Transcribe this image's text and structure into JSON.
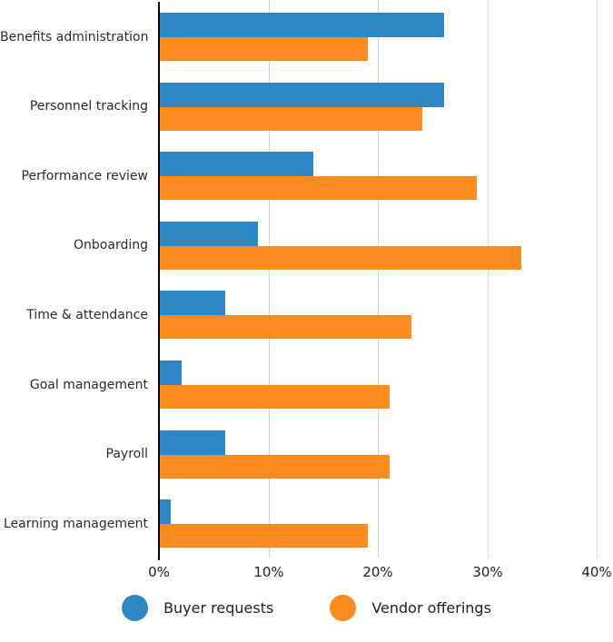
{
  "chart_data": {
    "type": "bar",
    "orientation": "horizontal",
    "title": "",
    "xlabel": "",
    "ylabel": "",
    "xlim": [
      0,
      40
    ],
    "x_tick_labels": [
      "0%",
      "10%",
      "20%",
      "30%",
      "40%"
    ],
    "x_tick_values": [
      0,
      10,
      20,
      30,
      40
    ],
    "grid": "vertical",
    "legend_position": "bottom",
    "categories": [
      "Benefits administration",
      "Personnel tracking",
      "Performance review",
      "Onboarding",
      "Time & attendance",
      "Goal management",
      "Payroll",
      "Learning management"
    ],
    "series": [
      {
        "name": "Buyer requests",
        "color": "#2e86c4",
        "values": [
          26,
          26,
          14,
          9,
          6,
          2,
          6,
          1
        ]
      },
      {
        "name": "Vendor offerings",
        "color": "#fc8b1f",
        "values": [
          19,
          24,
          29,
          33,
          23,
          21,
          21,
          19
        ]
      }
    ],
    "unit": "%"
  },
  "colors": {
    "axis": "#000000",
    "gridline": "#d4d4d4",
    "label_text": "#2b2b2b",
    "tick_text": "#222222"
  }
}
